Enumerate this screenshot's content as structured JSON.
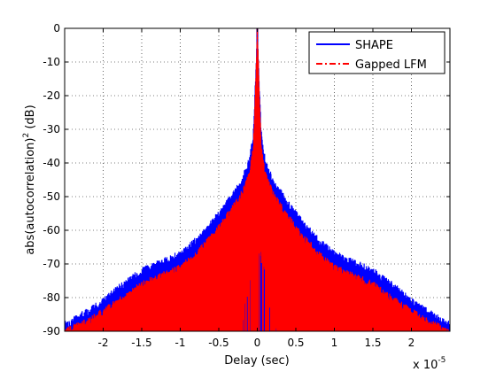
{
  "chart_data": {
    "type": "line",
    "xlabel": "Delay (sec)",
    "x_exponent_base": "x 10",
    "x_exponent_power": "-5",
    "ylabel_main": "abs(autocorrelation)",
    "ylabel_power": "2",
    "ylabel_unit": " (dB)",
    "xlim": [
      -2.5,
      2.5
    ],
    "ylim": [
      -90,
      0
    ],
    "x_scale_factor": "1e-5",
    "grid": true,
    "grid_style": "dotted",
    "legend_position": "top-right",
    "xticks": [
      -2,
      -1.5,
      -1,
      -0.5,
      0,
      0.5,
      1,
      1.5,
      2
    ],
    "xtick_labels": [
      "-2",
      "-1.5",
      "-1",
      "-0.5",
      "0",
      "0.5",
      "1",
      "1.5",
      "2"
    ],
    "yticks": [
      0,
      -10,
      -20,
      -30,
      -40,
      -50,
      -60,
      -70,
      -80,
      -90
    ],
    "ytick_labels": [
      "0",
      "-10",
      "-20",
      "-30",
      "-40",
      "-50",
      "-60",
      "-70",
      "-80",
      "-90"
    ],
    "series": [
      {
        "name": "SHAPE",
        "color": "#0000ff",
        "line_style": "solid",
        "envelope_x": [
          -2.5,
          -2.2,
          -2.0,
          -1.8,
          -1.5,
          -1.2,
          -1.0,
          -0.8,
          -0.6,
          -0.4,
          -0.2,
          -0.1,
          -0.05,
          0.0,
          0.05,
          0.1,
          0.2,
          0.4,
          0.6,
          0.8,
          1.0,
          1.2,
          1.5,
          1.8,
          2.0,
          2.2,
          2.5
        ],
        "envelope_top": [
          -87,
          -83,
          -80,
          -76,
          -71,
          -68,
          -66,
          -62,
          -57,
          -51,
          -44,
          -38,
          -30,
          0,
          -30,
          -38,
          -44,
          -51,
          -57,
          -62,
          -66,
          -68,
          -71,
          -76,
          -80,
          -83,
          -87
        ]
      },
      {
        "name": "Gapped LFM",
        "color": "#ff0000",
        "line_style": "dash-dot",
        "envelope_x": [
          -2.5,
          -2.2,
          -2.0,
          -1.8,
          -1.5,
          -1.2,
          -1.0,
          -0.8,
          -0.6,
          -0.4,
          -0.2,
          -0.1,
          -0.05,
          0.0,
          0.05,
          0.1,
          0.2,
          0.4,
          0.6,
          0.8,
          1.0,
          1.2,
          1.5,
          1.8,
          2.0,
          2.2,
          2.5
        ],
        "envelope_top": [
          -89,
          -86,
          -83,
          -80,
          -75,
          -72,
          -70,
          -66,
          -61,
          -55,
          -48,
          -42,
          -34,
          0,
          -34,
          -42,
          -48,
          -55,
          -61,
          -66,
          -70,
          -72,
          -75,
          -80,
          -83,
          -86,
          -89
        ],
        "inner_gap_x": [
          -0.3,
          -0.25,
          -0.2,
          -0.15,
          -0.1,
          -0.05,
          0.0,
          0.05,
          0.1,
          0.15,
          0.2,
          0.25,
          0.3
        ],
        "inner_gap_top": [
          -90,
          -86,
          -80,
          -73,
          -66,
          -60,
          -56,
          -60,
          -66,
          -73,
          -80,
          -86,
          -90
        ]
      }
    ]
  }
}
